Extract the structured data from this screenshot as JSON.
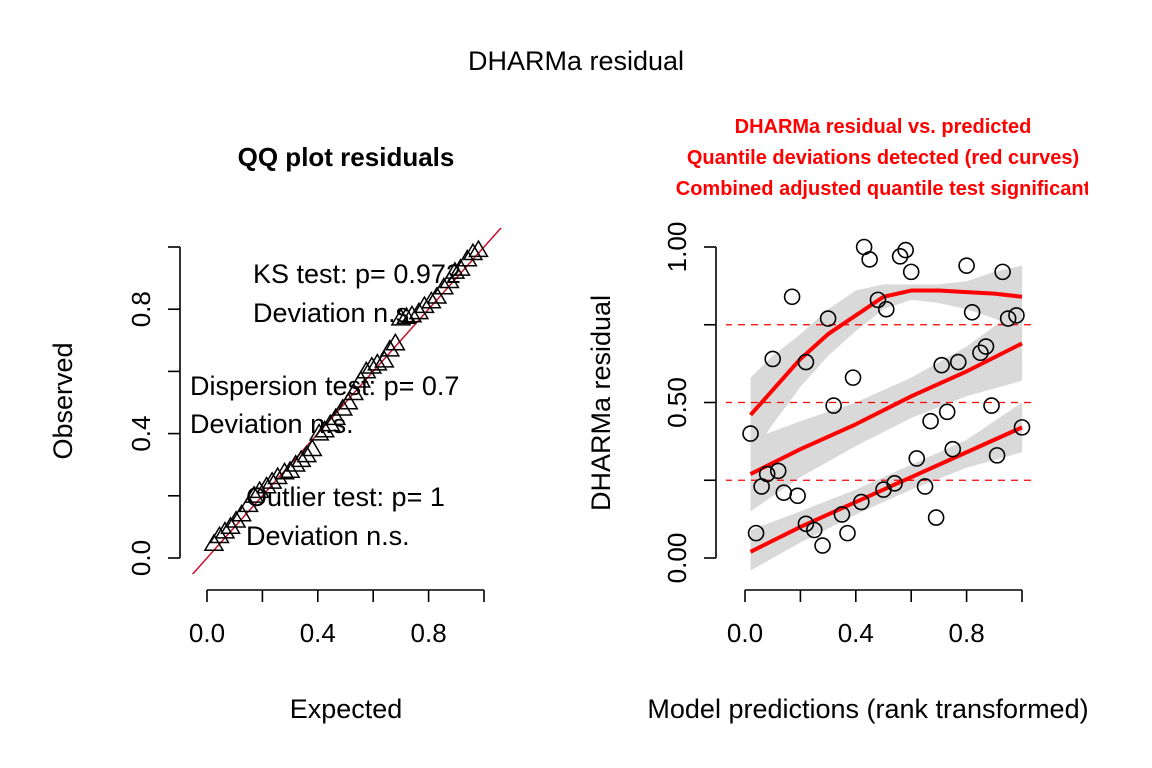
{
  "page": {
    "title": "DHARMa residual"
  },
  "colors": {
    "axis": "#000000",
    "qq_line": "#c8102e",
    "red": "#ff0000",
    "band": "#d9d9d9",
    "points": "#000000"
  },
  "chart_data": [
    {
      "type": "scatter",
      "title": "QQ plot residuals",
      "xlabel": "Expected",
      "ylabel": "Observed",
      "xlim": [
        0,
        1
      ],
      "ylim": [
        0,
        1
      ],
      "x_ticks": [
        "0.0",
        "0.4",
        "0.8"
      ],
      "y_ticks": [
        "0.0",
        "0.4",
        "0.8"
      ],
      "marker": "triangle",
      "reference_line": {
        "from": [
          0,
          0
        ],
        "to": [
          1,
          1
        ]
      },
      "annotations": {
        "ks": "KS test: p= 0.972",
        "ks_dev": "Deviation n.s.",
        "disp": "Dispersion test: p= 0.7",
        "disp_dev": "Deviation n.s.",
        "outlier": "Outlier test: p= 1",
        "outlier_dev": "Deviation n.s."
      },
      "points": [
        [
          0.025,
          0.045
        ],
        [
          0.045,
          0.07
        ],
        [
          0.065,
          0.085
        ],
        [
          0.085,
          0.1
        ],
        [
          0.105,
          0.12
        ],
        [
          0.125,
          0.14
        ],
        [
          0.15,
          0.17
        ],
        [
          0.17,
          0.2
        ],
        [
          0.19,
          0.215
        ],
        [
          0.215,
          0.23
        ],
        [
          0.235,
          0.245
        ],
        [
          0.255,
          0.26
        ],
        [
          0.28,
          0.275
        ],
        [
          0.3,
          0.28
        ],
        [
          0.32,
          0.3
        ],
        [
          0.34,
          0.315
        ],
        [
          0.36,
          0.33
        ],
        [
          0.38,
          0.35
        ],
        [
          0.405,
          0.4
        ],
        [
          0.425,
          0.41
        ],
        [
          0.445,
          0.43
        ],
        [
          0.465,
          0.45
        ],
        [
          0.49,
          0.48
        ],
        [
          0.51,
          0.5
        ],
        [
          0.53,
          0.53
        ],
        [
          0.555,
          0.57
        ],
        [
          0.575,
          0.6
        ],
        [
          0.595,
          0.615
        ],
        [
          0.615,
          0.625
        ],
        [
          0.64,
          0.635
        ],
        [
          0.66,
          0.67
        ],
        [
          0.68,
          0.69
        ],
        [
          0.7,
          0.77
        ],
        [
          0.72,
          0.775
        ],
        [
          0.74,
          0.78
        ],
        [
          0.765,
          0.79
        ],
        [
          0.785,
          0.81
        ],
        [
          0.81,
          0.825
        ],
        [
          0.83,
          0.84
        ],
        [
          0.855,
          0.87
        ],
        [
          0.875,
          0.89
        ],
        [
          0.895,
          0.92
        ],
        [
          0.915,
          0.93
        ],
        [
          0.94,
          0.96
        ],
        [
          0.96,
          0.98
        ],
        [
          0.98,
          0.99
        ]
      ]
    },
    {
      "type": "scatter",
      "title_lines": [
        "DHARMa residual vs. predicted",
        "Quantile deviations detected (red curves)",
        "Combined adjusted quantile test significant"
      ],
      "xlabel": "Model predictions (rank transformed)",
      "ylabel": "DHARMa residual",
      "xlim": [
        0,
        1
      ],
      "ylim": [
        0,
        1
      ],
      "x_ticks": [
        "0.0",
        "0.4",
        "0.8"
      ],
      "y_ticks": [
        "0.00",
        "0.50",
        "1.00"
      ],
      "reference_lines_y": [
        0.25,
        0.5,
        0.75
      ],
      "marker": "circle",
      "points": [
        [
          0.02,
          0.4
        ],
        [
          0.04,
          0.08
        ],
        [
          0.06,
          0.23
        ],
        [
          0.08,
          0.27
        ],
        [
          0.1,
          0.64
        ],
        [
          0.12,
          0.28
        ],
        [
          0.14,
          0.21
        ],
        [
          0.17,
          0.84
        ],
        [
          0.19,
          0.2
        ],
        [
          0.22,
          0.63
        ],
        [
          0.22,
          0.11
        ],
        [
          0.25,
          0.09
        ],
        [
          0.28,
          0.04
        ],
        [
          0.3,
          0.77
        ],
        [
          0.32,
          0.49
        ],
        [
          0.35,
          0.14
        ],
        [
          0.37,
          0.08
        ],
        [
          0.39,
          0.58
        ],
        [
          0.42,
          0.18
        ],
        [
          0.43,
          1.0
        ],
        [
          0.45,
          0.96
        ],
        [
          0.48,
          0.83
        ],
        [
          0.5,
          0.22
        ],
        [
          0.51,
          0.8
        ],
        [
          0.54,
          0.24
        ],
        [
          0.56,
          0.97
        ],
        [
          0.58,
          0.99
        ],
        [
          0.6,
          0.92
        ],
        [
          0.62,
          0.32
        ],
        [
          0.65,
          0.23
        ],
        [
          0.67,
          0.44
        ],
        [
          0.69,
          0.13
        ],
        [
          0.71,
          0.62
        ],
        [
          0.73,
          0.47
        ],
        [
          0.75,
          0.35
        ],
        [
          0.77,
          0.63
        ],
        [
          0.8,
          0.94
        ],
        [
          0.82,
          0.79
        ],
        [
          0.85,
          0.66
        ],
        [
          0.87,
          0.68
        ],
        [
          0.89,
          0.49
        ],
        [
          0.91,
          0.33
        ],
        [
          0.93,
          0.92
        ],
        [
          0.95,
          0.77
        ],
        [
          0.98,
          0.78
        ],
        [
          1.0,
          0.42
        ]
      ],
      "curves": [
        {
          "quantile": 0.25,
          "x": [
            0.02,
            0.2,
            0.4,
            0.6,
            0.8,
            1.0
          ],
          "y": [
            0.02,
            0.1,
            0.18,
            0.26,
            0.34,
            0.42
          ],
          "band_upper": [
            0.09,
            0.15,
            0.22,
            0.3,
            0.38,
            0.5
          ],
          "band_lower": [
            -0.04,
            0.05,
            0.14,
            0.22,
            0.29,
            0.34
          ]
        },
        {
          "quantile": 0.5,
          "x": [
            0.02,
            0.2,
            0.4,
            0.6,
            0.8,
            1.0
          ],
          "y": [
            0.27,
            0.35,
            0.43,
            0.52,
            0.6,
            0.69
          ],
          "band_upper": [
            0.38,
            0.44,
            0.5,
            0.58,
            0.68,
            0.81
          ],
          "band_lower": [
            0.15,
            0.26,
            0.36,
            0.45,
            0.52,
            0.57
          ]
        },
        {
          "quantile": 0.75,
          "x": [
            0.02,
            0.1,
            0.2,
            0.3,
            0.4,
            0.5,
            0.6,
            0.7,
            0.8,
            0.9,
            1.0
          ],
          "y": [
            0.46,
            0.54,
            0.64,
            0.72,
            0.78,
            0.84,
            0.86,
            0.86,
            0.855,
            0.85,
            0.84
          ],
          "band_upper": [
            0.58,
            0.65,
            0.72,
            0.8,
            0.86,
            0.88,
            0.88,
            0.88,
            0.89,
            0.92,
            0.94
          ],
          "band_lower": [
            0.32,
            0.43,
            0.55,
            0.65,
            0.73,
            0.8,
            0.83,
            0.82,
            0.8,
            0.77,
            0.73
          ]
        }
      ]
    }
  ]
}
